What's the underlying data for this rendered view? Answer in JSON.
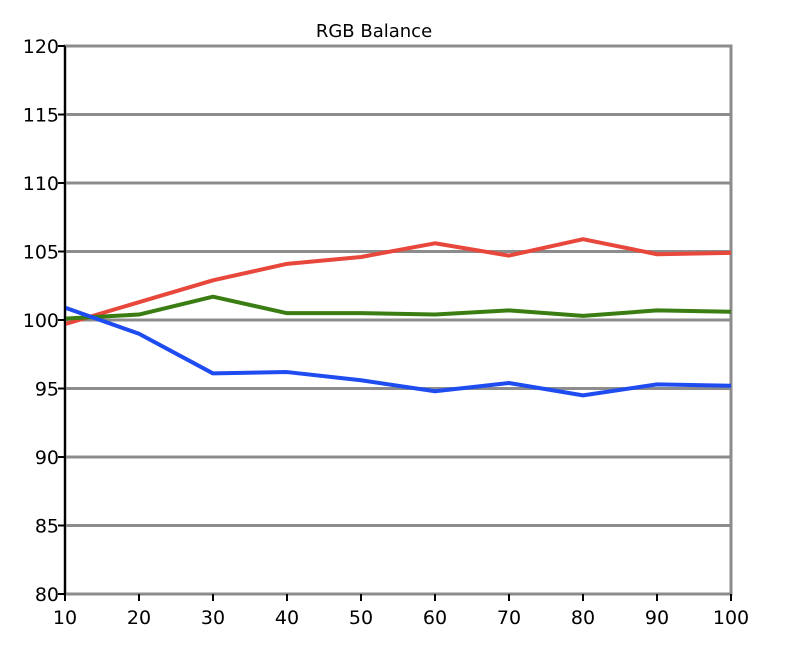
{
  "chart_data": {
    "type": "line",
    "title": "RGB Balance",
    "xlabel": "",
    "ylabel": "",
    "x": [
      10,
      20,
      30,
      40,
      50,
      60,
      70,
      80,
      90,
      100
    ],
    "xlim": [
      10,
      100
    ],
    "ylim": [
      80,
      120
    ],
    "xticks": [
      "10",
      "20",
      "30",
      "40",
      "50",
      "60",
      "70",
      "80",
      "90",
      "100"
    ],
    "yticks": [
      "80",
      "85",
      "90",
      "95",
      "100",
      "105",
      "110",
      "115",
      "120"
    ],
    "grid": true,
    "series": [
      {
        "color": "#e8473c",
        "values": [
          99.7,
          101.3,
          102.9,
          104.1,
          104.6,
          105.6,
          104.7,
          105.9,
          104.8,
          104.9
        ]
      },
      {
        "color": "#3a7d12",
        "values": [
          100.1,
          100.4,
          101.7,
          100.5,
          100.5,
          100.4,
          100.7,
          100.3,
          100.7,
          100.6
        ]
      },
      {
        "color": "#1f4cf0",
        "values": [
          100.9,
          99.0,
          96.1,
          96.2,
          95.6,
          94.8,
          95.4,
          94.5,
          95.3,
          95.2
        ]
      }
    ]
  }
}
